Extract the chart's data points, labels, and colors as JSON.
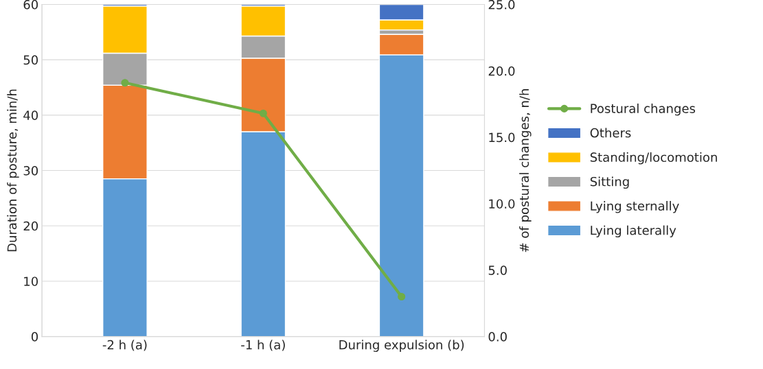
{
  "chart_data": {
    "type": "bar",
    "stacked": true,
    "categories": [
      "-2 h (a)",
      "-1 h (a)",
      "During expulsion (b)"
    ],
    "ylabel": "Duration of posture, min/h",
    "y2label": "# of postural changes, n/h",
    "ylim": [
      0,
      60
    ],
    "yticks": [
      0,
      10,
      20,
      30,
      40,
      50,
      60
    ],
    "y2lim": [
      0,
      25
    ],
    "y2ticks": [
      {
        "value": 0,
        "label": "0.0"
      },
      {
        "value": 5,
        "label": "5.0"
      },
      {
        "value": 10,
        "label": "10.0"
      },
      {
        "value": 15,
        "label": "15.0"
      },
      {
        "value": 20,
        "label": "20.0"
      },
      {
        "value": 25,
        "label": "25.0"
      }
    ],
    "grid": "y",
    "legend": "right",
    "series": [
      {
        "name": "Lying laterally",
        "color": "#5b9bd5",
        "values": [
          28.5,
          37.0,
          50.9
        ]
      },
      {
        "name": "Lying sternally",
        "color": "#ed7d31",
        "values": [
          16.9,
          13.3,
          3.7
        ]
      },
      {
        "name": "Sitting",
        "color": "#a5a5a5",
        "values": [
          5.8,
          4.0,
          0.8
        ]
      },
      {
        "name": "Standing/locomotion",
        "color": "#ffc000",
        "values": [
          8.5,
          5.4,
          1.8
        ]
      },
      {
        "name": "Others",
        "color": "#4472c4",
        "values": [
          0.3,
          0.3,
          2.8
        ]
      },
      {
        "name": "Postural changes",
        "color": "#70ad47",
        "type": "line",
        "axis": "y2",
        "marker": "circle",
        "values": [
          19.1,
          16.8,
          3.0
        ]
      }
    ]
  }
}
